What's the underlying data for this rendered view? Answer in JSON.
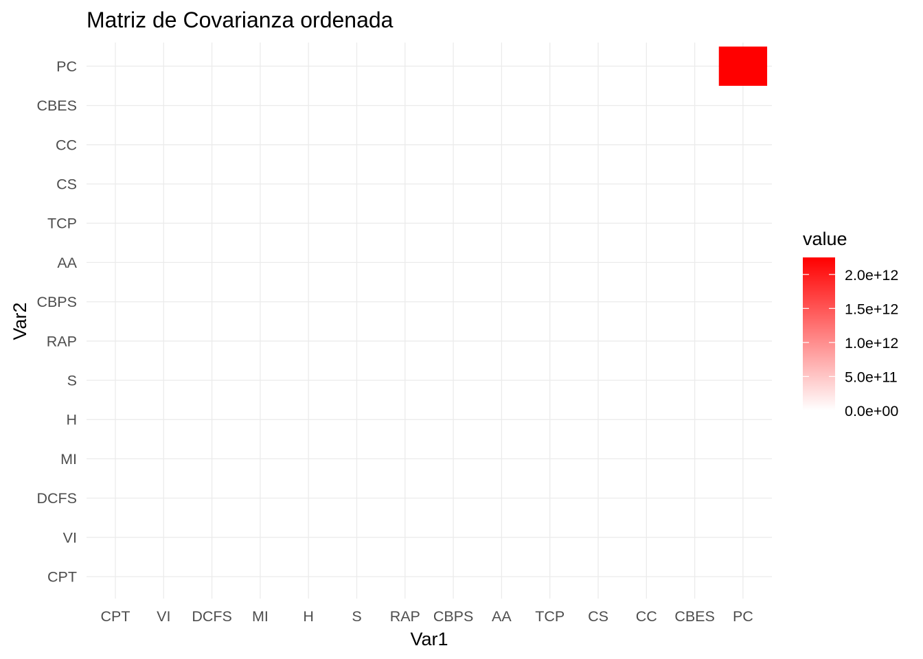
{
  "chart_data": {
    "type": "heatmap",
    "title": "Matriz de Covarianza ordenada",
    "xlabel": "Var1",
    "ylabel": "Var2",
    "categories_x": [
      "CPT",
      "VI",
      "DCFS",
      "MI",
      "H",
      "S",
      "RAP",
      "CBPS",
      "AA",
      "TCP",
      "CS",
      "CC",
      "CBES",
      "PC"
    ],
    "categories_y": [
      "CPT",
      "VI",
      "DCFS",
      "MI",
      "H",
      "S",
      "RAP",
      "CBPS",
      "AA",
      "TCP",
      "CS",
      "CC",
      "CBES",
      "PC"
    ],
    "cells": [
      {
        "x": "PC",
        "y": "PC",
        "value": 2250000000000.0
      }
    ],
    "other_cells_value": 0,
    "legend": {
      "title": "value",
      "placement": "right",
      "low_color": "#ffffff",
      "high_color": "#ff0000",
      "range": [
        0,
        2250000000000.0
      ],
      "breaks": [
        0,
        500000000000.0,
        1000000000000.0,
        1500000000000.0,
        2000000000000.0
      ],
      "break_labels": [
        "0.0e+00",
        "5.0e+11",
        "1.0e+12",
        "1.5e+12",
        "2.0e+12"
      ]
    },
    "grid": true
  }
}
